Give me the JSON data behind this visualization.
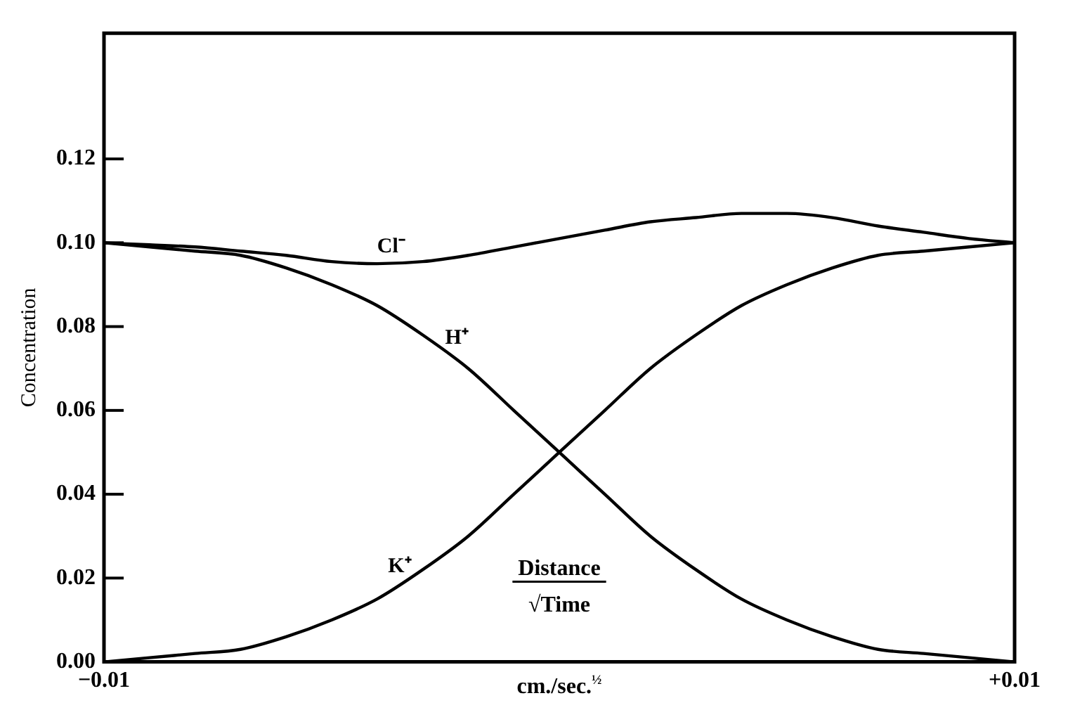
{
  "chart_data": {
    "type": "line",
    "x": [
      -0.01,
      -0.009,
      -0.008,
      -0.007,
      -0.006,
      -0.005,
      -0.004,
      -0.003,
      -0.002,
      -0.001,
      0,
      0.001,
      0.002,
      0.003,
      0.004,
      0.005,
      0.006,
      0.007,
      0.008,
      0.009,
      0.01
    ],
    "series": [
      {
        "name": "Cl⁻",
        "color": "#000000",
        "values": [
          0.1,
          0.0995,
          0.099,
          0.098,
          0.097,
          0.0955,
          0.095,
          0.0955,
          0.097,
          0.099,
          0.101,
          0.103,
          0.105,
          0.106,
          0.107,
          0.107,
          0.106,
          0.104,
          0.1025,
          0.101,
          0.1
        ]
      },
      {
        "name": "H⁺",
        "color": "#000000",
        "values": [
          0.1,
          0.099,
          0.098,
          0.097,
          0.094,
          0.09,
          0.085,
          0.078,
          0.07,
          0.06,
          0.05,
          0.04,
          0.03,
          0.022,
          0.015,
          0.01,
          0.006,
          0.003,
          0.002,
          0.001,
          0.0
        ]
      },
      {
        "name": "K⁺",
        "color": "#000000",
        "values": [
          0.0,
          0.001,
          0.002,
          0.003,
          0.006,
          0.01,
          0.015,
          0.022,
          0.03,
          0.04,
          0.05,
          0.06,
          0.07,
          0.078,
          0.085,
          0.09,
          0.094,
          0.097,
          0.098,
          0.099,
          0.1
        ]
      }
    ],
    "xlabel": "cm./sec.$^{½}$",
    "ylabel": "Concentration",
    "annotations": [
      "Distance",
      "√Time"
    ],
    "xlim": [
      -0.01,
      0.01
    ],
    "xticks": [
      {
        "value": -0.01,
        "label": "−0.01"
      },
      {
        "value": 0.01,
        "label": "+0.01"
      }
    ],
    "ylim": [
      0,
      0.15
    ],
    "yticks": [
      {
        "value": 0,
        "label": "0.00"
      },
      {
        "value": 0.02,
        "label": "0.02"
      },
      {
        "value": 0.04,
        "label": "0.04"
      },
      {
        "value": 0.06,
        "label": "0.06"
      },
      {
        "value": 0.08,
        "label": "0.08"
      },
      {
        "value": 0.1,
        "label": "0.10"
      },
      {
        "value": 0.12,
        "label": "0.12"
      }
    ],
    "grid": false,
    "legend": false,
    "marker": "none",
    "line_style": "solid"
  }
}
